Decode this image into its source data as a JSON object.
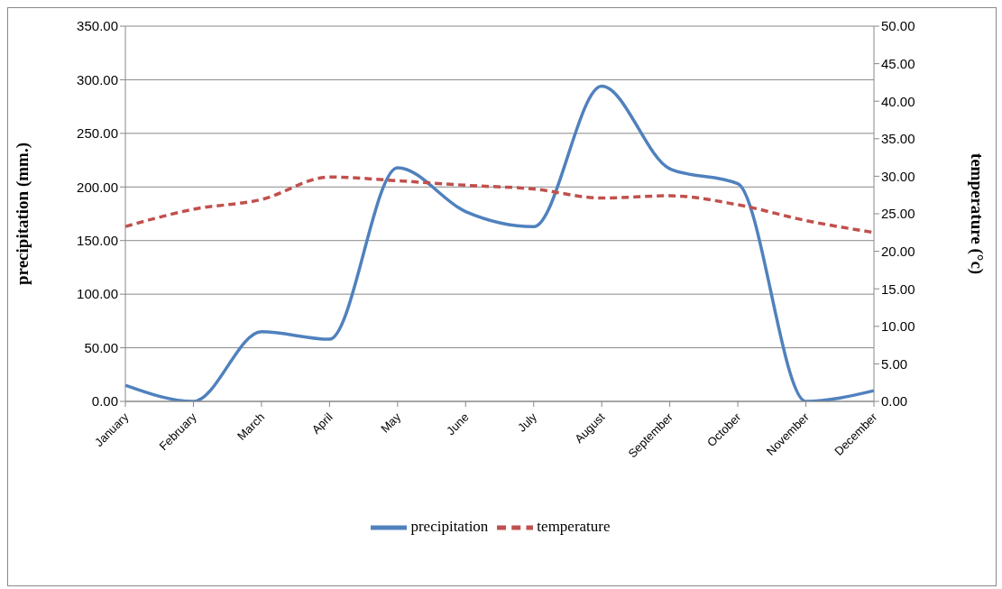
{
  "chart_data": {
    "type": "line",
    "categories": [
      "January",
      "February",
      "March",
      "April",
      "May",
      "June",
      "July",
      "August",
      "September",
      "October",
      "November",
      "December"
    ],
    "ylabel": "precipitation (mm.)",
    "y2label": "temperature (°c)",
    "series": [
      {
        "name": "precipitation",
        "color": "#4f81bd",
        "line_style": "solid",
        "values": [
          15,
          0,
          65,
          58,
          218,
          177,
          163,
          294,
          217,
          203,
          0,
          10
        ]
      },
      {
        "name": "temperature",
        "color": "#c0504d",
        "axis": "y2",
        "line_style": "dashed",
        "values": [
          23.3,
          25.6,
          26.9,
          29.9,
          29.4,
          28.8,
          28.3,
          27.1,
          27.4,
          26.2,
          24.1,
          22.5
        ]
      }
    ],
    "ylim": [
      0,
      350
    ],
    "yticks": [
      {
        "value": 0,
        "label": "0.00"
      },
      {
        "value": 50,
        "label": "50.00"
      },
      {
        "value": 100,
        "label": "100.00"
      },
      {
        "value": 150,
        "label": "150.00"
      },
      {
        "value": 200,
        "label": "200.00"
      },
      {
        "value": 250,
        "label": "250.00"
      },
      {
        "value": 300,
        "label": "300.00"
      },
      {
        "value": 350,
        "label": "350.00"
      }
    ],
    "y2lim": [
      0,
      50
    ],
    "y2ticks": [
      {
        "value": 0,
        "label": "0.00"
      },
      {
        "value": 5,
        "label": "5.00"
      },
      {
        "value": 10,
        "label": "10.00"
      },
      {
        "value": 15,
        "label": "15.00"
      },
      {
        "value": 20,
        "label": "20.00"
      },
      {
        "value": 25,
        "label": "25.00"
      },
      {
        "value": 30,
        "label": "30.00"
      },
      {
        "value": 35,
        "label": "35.00"
      },
      {
        "value": 40,
        "label": "40.00"
      },
      {
        "value": 45,
        "label": "45.00"
      },
      {
        "value": 50,
        "label": "50.00"
      }
    ],
    "grid": "y",
    "legend": "bottom",
    "marker": "none"
  }
}
